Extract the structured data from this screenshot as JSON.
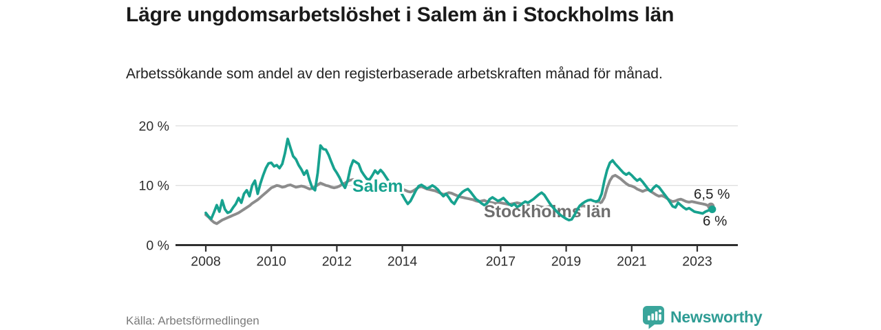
{
  "header": {
    "title": "Lägre ungdomsarbetslöshet i Salem än i Stockholms län",
    "subtitle": "Arbetssökande som andel av den registerbaserade arbetskraften månad för månad."
  },
  "footer": {
    "source": "Källa: Arbetsförmedlingen",
    "brand": {
      "name": "Newsworthy",
      "icon": "bar-chart-bubble-icon",
      "color": "#2e9c94"
    }
  },
  "chart_data": {
    "type": "line",
    "title": "Lägre ungdomsarbetslöshet i Salem än i Stockholms län",
    "xlabel": "",
    "ylabel": "",
    "x_start_year": 2008,
    "x_interval": "monthly",
    "x_end": "2023-06",
    "ylim": [
      0,
      20
    ],
    "grid": "horizontal",
    "y_ticks": [
      {
        "value": 0,
        "label": "0 %"
      },
      {
        "value": 10,
        "label": "10 %"
      },
      {
        "value": 20,
        "label": "20 %"
      }
    ],
    "x_ticks": [
      {
        "year": 2008,
        "label": "2008"
      },
      {
        "year": 2010,
        "label": "2010"
      },
      {
        "year": 2012,
        "label": "2012"
      },
      {
        "year": 2014,
        "label": "2014"
      },
      {
        "year": 2017,
        "label": "2017"
      },
      {
        "year": 2019,
        "label": "2019"
      },
      {
        "year": 2021,
        "label": "2021"
      },
      {
        "year": 2023,
        "label": "2023"
      }
    ],
    "series": [
      {
        "name": "Salem",
        "color": "#17a28f",
        "end_value": 6.0,
        "end_label": "6 %",
        "values": [
          5.4,
          4.8,
          4.4,
          5.5,
          6.7,
          5.6,
          7.5,
          6.0,
          5.4,
          5.6,
          6.3,
          6.9,
          7.9,
          7.1,
          8.6,
          9.2,
          8.2,
          10.0,
          10.8,
          8.6,
          10.3,
          11.7,
          12.9,
          13.7,
          13.8,
          13.2,
          13.4,
          12.9,
          13.6,
          15.4,
          17.8,
          16.3,
          14.9,
          14.4,
          13.4,
          12.7,
          11.8,
          12.5,
          10.9,
          9.6,
          9.2,
          12.1,
          16.7,
          16.1,
          16.0,
          15.1,
          13.9,
          12.8,
          12.1,
          11.3,
          10.3,
          9.6,
          10.9,
          13.0,
          14.2,
          13.9,
          13.6,
          12.4,
          11.7,
          11.1,
          11.0,
          11.7,
          12.5,
          12.0,
          12.6,
          12.1,
          11.4,
          10.7,
          10.2,
          10.6,
          10.0,
          9.3,
          8.4,
          7.6,
          6.9,
          7.4,
          8.3,
          9.2,
          9.9,
          10.1,
          9.8,
          9.5,
          9.7,
          10.0,
          9.7,
          9.3,
          8.7,
          8.2,
          8.6,
          8.0,
          7.3,
          6.9,
          7.7,
          8.4,
          8.9,
          9.2,
          9.4,
          8.9,
          8.3,
          7.7,
          7.4,
          7.0,
          6.7,
          7.0,
          7.7,
          8.0,
          7.7,
          7.4,
          7.6,
          7.9,
          7.4,
          6.9,
          6.6,
          6.9,
          6.4,
          6.6,
          7.0,
          7.3,
          7.1,
          7.4,
          7.7,
          8.1,
          8.5,
          8.8,
          8.4,
          7.7,
          7.0,
          6.4,
          5.9,
          5.4,
          5.0,
          4.7,
          4.4,
          4.2,
          4.3,
          5.0,
          5.9,
          6.6,
          7.0,
          7.3,
          7.5,
          7.6,
          7.4,
          7.3,
          7.5,
          8.6,
          10.8,
          12.6,
          13.8,
          14.2,
          13.6,
          13.1,
          12.6,
          12.1,
          11.8,
          12.1,
          11.7,
          11.2,
          10.8,
          11.1,
          10.6,
          10.0,
          9.4,
          9.0,
          9.6,
          10.0,
          9.7,
          9.1,
          8.5,
          7.9,
          7.2,
          6.5,
          6.3,
          7.1,
          6.7,
          6.3,
          6.0,
          6.2,
          5.9,
          5.6,
          5.5,
          5.4,
          5.3,
          5.6,
          5.8,
          6.0
        ]
      },
      {
        "name": "Stockholms län",
        "color": "#8c8c8c",
        "end_value": 6.5,
        "end_label": "6,5 %",
        "values": [
          5.1,
          4.7,
          4.2,
          3.8,
          3.6,
          3.9,
          4.2,
          4.4,
          4.6,
          4.8,
          5.0,
          5.2,
          5.4,
          5.7,
          6.0,
          6.3,
          6.6,
          7.0,
          7.3,
          7.6,
          8.0,
          8.4,
          8.8,
          9.2,
          9.6,
          9.8,
          10.0,
          9.9,
          9.7,
          9.8,
          10.0,
          10.1,
          9.9,
          9.7,
          9.8,
          9.9,
          9.8,
          9.6,
          9.4,
          9.5,
          9.8,
          10.1,
          10.4,
          10.2,
          10.0,
          9.9,
          9.7,
          9.6,
          9.7,
          9.9,
          10.2,
          10.4,
          10.7,
          10.9,
          11.0,
          10.9,
          10.7,
          10.6,
          10.5,
          10.4,
          10.4,
          10.3,
          10.2,
          10.1,
          10.0,
          10.2,
          10.3,
          10.1,
          10.0,
          9.8,
          9.6,
          9.5,
          9.4,
          9.2,
          9.0,
          8.9,
          9.1,
          9.4,
          9.7,
          9.8,
          9.6,
          9.4,
          9.3,
          9.2,
          9.1,
          8.9,
          8.7,
          8.5,
          8.6,
          8.8,
          8.7,
          8.5,
          8.3,
          8.1,
          8.0,
          7.9,
          7.8,
          7.7,
          7.6,
          7.4,
          7.3,
          7.4,
          7.5,
          7.3,
          7.2,
          7.1,
          7.0,
          7.0,
          7.1,
          7.0,
          6.9,
          6.8,
          6.9,
          7.0,
          7.1,
          7.0,
          6.8,
          6.7,
          6.6,
          6.7,
          6.7,
          6.6,
          6.5,
          6.4,
          6.3,
          6.4,
          6.5,
          6.4,
          6.2,
          6.1,
          6.0,
          6.1,
          6.2,
          6.1,
          6.0,
          6.1,
          6.2,
          6.4,
          6.6,
          6.5,
          6.4,
          6.5,
          6.7,
          6.9,
          7.0,
          7.2,
          8.0,
          9.6,
          10.8,
          11.5,
          11.7,
          11.4,
          11.1,
          10.7,
          10.3,
          10.0,
          9.9,
          9.7,
          9.4,
          9.2,
          9.0,
          9.2,
          9.3,
          9.0,
          8.7,
          8.4,
          8.2,
          8.3,
          8.1,
          7.8,
          7.5,
          7.3,
          7.4,
          7.6,
          7.7,
          7.5,
          7.3,
          7.2,
          7.3,
          7.2,
          7.1,
          7.0,
          6.9,
          6.8,
          6.6,
          6.5
        ]
      }
    ]
  }
}
